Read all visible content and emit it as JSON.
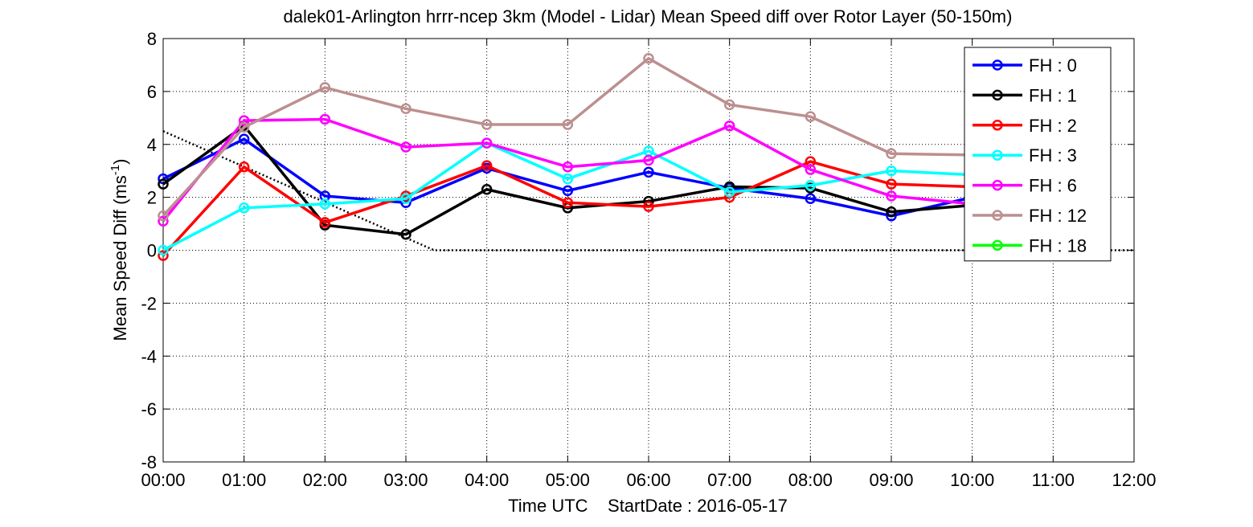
{
  "chart_data": {
    "type": "line",
    "title": "dalek01-Arlington hrrr-ncep 3km (Model - Lidar) Mean Speed diff over Rotor Layer (50-150m)",
    "xlabel": "Time UTC    StartDate : 2016-05-17",
    "ylabel_main": "Mean Speed Diff (ms",
    "ylabel_sup": "-1",
    "ylabel_end": ")",
    "x_ticks": [
      "00:00",
      "01:00",
      "02:00",
      "03:00",
      "04:00",
      "05:00",
      "06:00",
      "07:00",
      "08:00",
      "09:00",
      "10:00",
      "11:00",
      "12:00"
    ],
    "y_ticks": [
      "-8",
      "-6",
      "-4",
      "-2",
      "0",
      "2",
      "4",
      "6",
      "8"
    ],
    "xlim": [
      0,
      12
    ],
    "ylim": [
      -8,
      8
    ],
    "grid": true,
    "legend_position": "top-right",
    "series": [
      {
        "name": "FH : 0",
        "color": "#0000ff",
        "x": [
          0,
          1,
          2,
          3,
          4,
          5,
          6,
          7,
          8,
          9,
          10
        ],
        "values": [
          2.7,
          4.2,
          2.05,
          1.8,
          3.1,
          2.25,
          2.95,
          2.35,
          1.95,
          1.3,
          2.0
        ]
      },
      {
        "name": "FH : 1",
        "color": "#000000",
        "x": [
          0,
          1,
          2,
          3,
          4,
          5,
          6,
          7,
          8,
          9,
          10
        ],
        "values": [
          2.5,
          4.7,
          0.95,
          0.6,
          2.3,
          1.6,
          1.85,
          2.4,
          2.35,
          1.45,
          1.7
        ]
      },
      {
        "name": "FH : 2",
        "color": "#ff0000",
        "x": [
          0,
          1,
          2,
          3,
          4,
          5,
          6,
          7,
          8,
          9,
          10
        ],
        "values": [
          -0.2,
          3.15,
          1.05,
          2.05,
          3.2,
          1.8,
          1.65,
          2.0,
          3.35,
          2.5,
          2.4
        ]
      },
      {
        "name": "FH : 3",
        "color": "#00ffff",
        "x": [
          0,
          1,
          2,
          3,
          4,
          5,
          6,
          7,
          8,
          9,
          10
        ],
        "values": [
          0.0,
          1.6,
          1.75,
          1.95,
          4.05,
          2.7,
          3.75,
          2.2,
          2.45,
          3.0,
          2.85
        ]
      },
      {
        "name": "FH : 6",
        "color": "#ff00ff",
        "x": [
          0,
          1,
          2,
          3,
          4,
          5,
          6,
          7,
          8,
          9,
          10
        ],
        "values": [
          1.1,
          4.9,
          4.95,
          3.9,
          4.05,
          3.15,
          3.4,
          4.7,
          3.05,
          2.05,
          1.75
        ]
      },
      {
        "name": "FH : 12",
        "color": "#bc8f8f",
        "x": [
          0,
          1,
          2,
          3,
          4,
          5,
          6,
          7,
          8,
          9,
          10
        ],
        "values": [
          1.3,
          4.65,
          6.15,
          5.35,
          4.75,
          4.75,
          7.25,
          5.5,
          5.05,
          3.65,
          3.6
        ]
      },
      {
        "name": "FH : 18",
        "color": "#00ff00",
        "x": [],
        "values": []
      }
    ],
    "reference_line": {
      "style": "dotted",
      "color": "#000000",
      "x": [
        0,
        3.35,
        12
      ],
      "values": [
        4.5,
        0,
        0
      ]
    }
  }
}
